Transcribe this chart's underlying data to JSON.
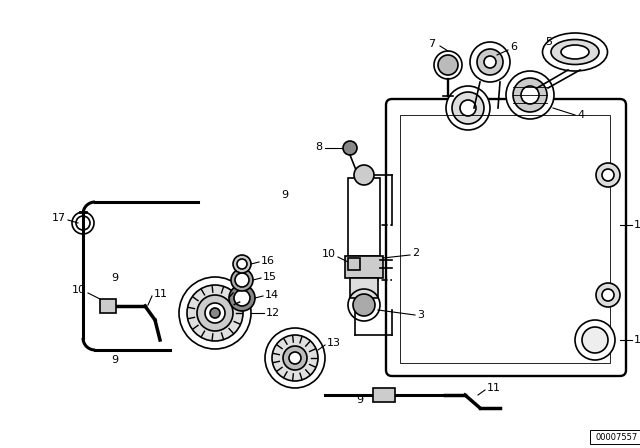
{
  "title": "",
  "part_number": "00007557",
  "background_color": "#ffffff",
  "line_color": "#000000",
  "figsize": [
    6.4,
    4.48
  ],
  "dpi": 100
}
